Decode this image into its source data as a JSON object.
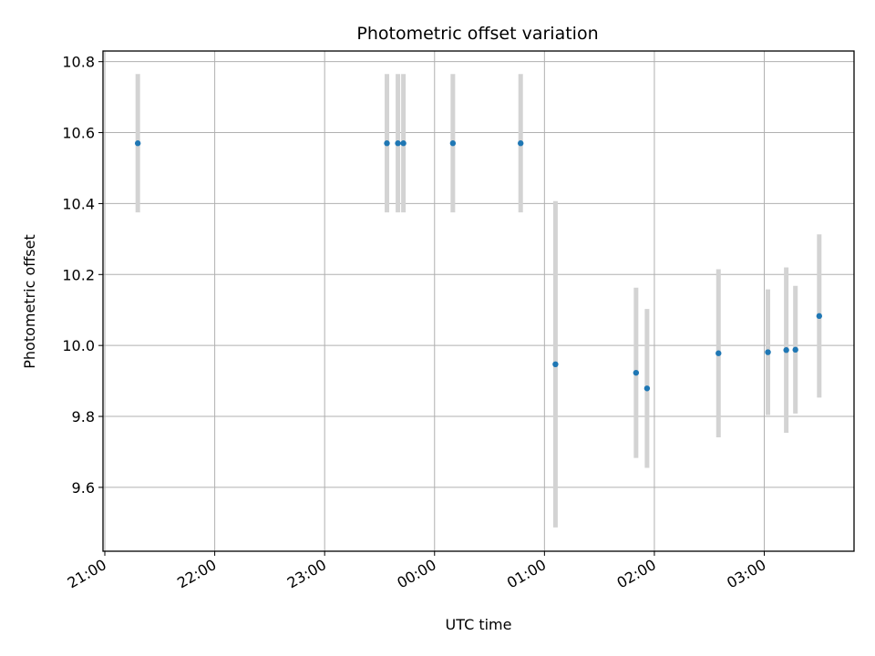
{
  "chart_data": {
    "type": "scatter",
    "title": "Photometric offset variation",
    "xlabel": "UTC time",
    "ylabel": "Photometric offset",
    "x_ticks": [
      "21:00",
      "22:00",
      "23:00",
      "00:00",
      "01:00",
      "02:00",
      "03:00"
    ],
    "y_ticks": [
      "9.6",
      "9.8",
      "10.0",
      "10.2",
      "10.4",
      "10.6",
      "10.8"
    ],
    "xlim": [
      "20:59",
      "03:49"
    ],
    "ylim": [
      9.42,
      10.83
    ],
    "grid": true,
    "marker_color": "#1f77b4",
    "errorbar_color": "#d3d3d3",
    "points": [
      {
        "time": "21:18",
        "y": 10.57,
        "err": 0.195
      },
      {
        "time": "23:34",
        "y": 10.57,
        "err": 0.195
      },
      {
        "time": "23:40",
        "y": 10.57,
        "err": 0.195
      },
      {
        "time": "23:43",
        "y": 10.57,
        "err": 0.195
      },
      {
        "time": "00:10",
        "y": 10.57,
        "err": 0.195
      },
      {
        "time": "00:47",
        "y": 10.57,
        "err": 0.195
      },
      {
        "time": "01:06",
        "y": 9.947,
        "err": 0.46
      },
      {
        "time": "01:50",
        "y": 9.923,
        "err": 0.24
      },
      {
        "time": "01:56",
        "y": 9.879,
        "err": 0.224
      },
      {
        "time": "02:35",
        "y": 9.978,
        "err": 0.237
      },
      {
        "time": "03:02",
        "y": 9.981,
        "err": 0.177
      },
      {
        "time": "03:12",
        "y": 9.987,
        "err": 0.233
      },
      {
        "time": "03:17",
        "y": 9.988,
        "err": 0.18
      },
      {
        "time": "03:30",
        "y": 10.083,
        "err": 0.23
      }
    ]
  }
}
